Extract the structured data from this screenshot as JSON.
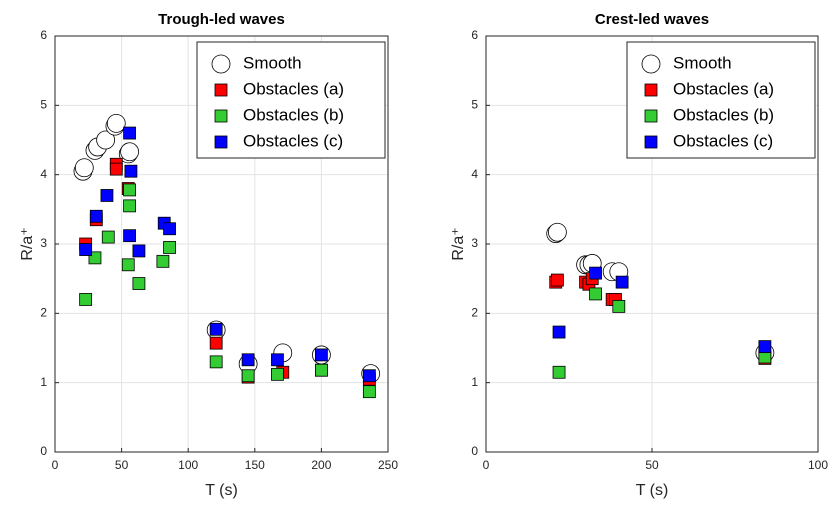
{
  "chart_data": [
    {
      "type": "scatter",
      "title": "Trough-led waves",
      "xlabel": "T (s)",
      "ylabel": "R/a⁺",
      "xlim": [
        0,
        250
      ],
      "ylim": [
        0,
        6
      ],
      "xticks": [
        0,
        50,
        100,
        150,
        200,
        250
      ],
      "yticks": [
        0,
        1,
        2,
        3,
        4,
        5,
        6
      ],
      "grid": true,
      "legend": "upper right",
      "series": [
        {
          "name": "Smooth",
          "marker": "circle",
          "color": "#ffffff",
          "x": [
            21,
            22,
            30,
            32,
            38,
            45,
            46,
            55,
            56,
            121,
            145,
            171,
            200,
            237
          ],
          "values": [
            4.05,
            4.1,
            4.35,
            4.4,
            4.5,
            4.7,
            4.74,
            4.3,
            4.33,
            1.76,
            1.27,
            1.43,
            1.4,
            1.13
          ]
        },
        {
          "name": "Obstacles (a)",
          "marker": "square",
          "color": "#ff0000",
          "x": [
            23,
            31,
            46,
            46,
            55,
            121,
            145,
            171,
            200,
            236
          ],
          "values": [
            3.0,
            3.35,
            4.15,
            4.08,
            3.8,
            1.57,
            1.08,
            1.15,
            1.18,
            1.05
          ]
        },
        {
          "name": "Obstacles (b)",
          "marker": "square",
          "color": "#33cc33",
          "x": [
            23,
            30,
            40,
            55,
            56,
            56,
            63,
            81,
            86,
            121,
            145,
            167,
            200,
            236
          ],
          "values": [
            2.2,
            2.8,
            3.1,
            2.7,
            3.78,
            3.55,
            2.43,
            2.75,
            2.95,
            1.3,
            1.1,
            1.12,
            1.18,
            0.87
          ]
        },
        {
          "name": "Obstacles (c)",
          "marker": "square",
          "color": "#0000ff",
          "x": [
            23,
            31,
            39,
            56,
            56,
            57,
            63,
            82,
            86,
            121,
            145,
            167,
            200,
            236
          ],
          "values": [
            2.92,
            3.4,
            3.7,
            4.6,
            3.12,
            4.05,
            2.9,
            3.3,
            3.22,
            1.77,
            1.33,
            1.33,
            1.4,
            1.1
          ]
        }
      ]
    },
    {
      "type": "scatter",
      "title": "Crest-led waves",
      "xlabel": "T (s)",
      "ylabel": "R/a⁺",
      "xlim": [
        0,
        100
      ],
      "ylim": [
        0,
        6
      ],
      "xticks": [
        0,
        50,
        100
      ],
      "yticks": [
        0,
        1,
        2,
        3,
        4,
        5,
        6
      ],
      "grid": true,
      "legend": "upper right",
      "series": [
        {
          "name": "Smooth",
          "marker": "circle",
          "color": "#ffffff",
          "x": [
            21,
            21.5,
            30,
            31,
            32,
            38,
            40,
            84
          ],
          "values": [
            3.15,
            3.17,
            2.7,
            2.7,
            2.72,
            2.6,
            2.6,
            1.43
          ]
        },
        {
          "name": "Obstacles (a)",
          "marker": "square",
          "color": "#ff0000",
          "x": [
            21,
            21.5,
            30,
            31,
            32,
            38,
            39,
            84
          ],
          "values": [
            2.45,
            2.48,
            2.45,
            2.42,
            2.5,
            2.2,
            2.2,
            1.35
          ]
        },
        {
          "name": "Obstacles (b)",
          "marker": "square",
          "color": "#33cc33",
          "x": [
            22,
            33,
            40,
            84
          ],
          "values": [
            1.15,
            2.28,
            2.1,
            1.37
          ]
        },
        {
          "name": "Obstacles (c)",
          "marker": "square",
          "color": "#0000ff",
          "x": [
            22,
            33,
            41,
            84
          ],
          "values": [
            1.73,
            2.58,
            2.45,
            1.52
          ]
        }
      ]
    }
  ]
}
